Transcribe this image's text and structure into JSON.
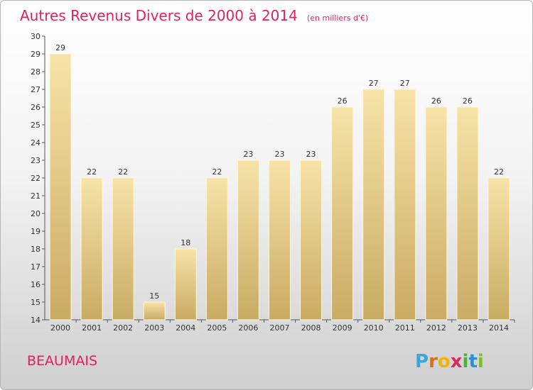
{
  "chart_data": {
    "type": "bar",
    "title": "Autres Revenus Divers de 2000 à 2014",
    "subtitle": "(en milliers d'€)",
    "categories": [
      "2000",
      "2001",
      "2002",
      "2003",
      "2004",
      "2005",
      "2006",
      "2007",
      "2008",
      "2009",
      "2010",
      "2011",
      "2012",
      "2013",
      "2014"
    ],
    "values": [
      29,
      22,
      22,
      15,
      18,
      22,
      23,
      23,
      23,
      26,
      27,
      27,
      26,
      26,
      22
    ],
    "ylim": [
      14,
      30
    ],
    "yticks": [
      "14",
      "15",
      "16",
      "17",
      "18",
      "19",
      "20",
      "21",
      "22",
      "23",
      "24",
      "25",
      "26",
      "27",
      "28",
      "29",
      "30"
    ],
    "data_labels": [
      "29",
      "22",
      "22",
      "15",
      "18",
      "22",
      "23",
      "23",
      "23",
      "26",
      "27",
      "27",
      "26",
      "26",
      "22"
    ],
    "grid": false,
    "bar_color": "#e6cb86"
  },
  "commune": "BEAUMAIS",
  "logo": {
    "letters": [
      "P",
      "r",
      "o",
      "x",
      "i",
      "t",
      "i"
    ],
    "colors": [
      "#3aa6dc",
      "#e06a1a",
      "#f2b300",
      "#d92b5a",
      "#4bb03a",
      "#2b8fd0",
      "#7cbf2a"
    ]
  }
}
